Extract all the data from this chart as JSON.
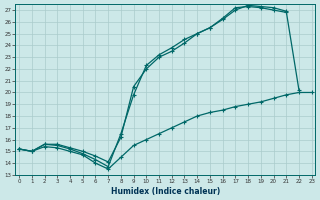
{
  "xlabel": "Humidex (Indice chaleur)",
  "bg_color": "#cce8e8",
  "line_color": "#006868",
  "grid_color": "#aacccc",
  "xlim": [
    -0.3,
    23.3
  ],
  "ylim": [
    13,
    27.5
  ],
  "xticks": [
    0,
    1,
    2,
    3,
    4,
    5,
    6,
    7,
    8,
    9,
    10,
    11,
    12,
    13,
    14,
    15,
    16,
    17,
    18,
    19,
    20,
    21,
    22,
    23
  ],
  "yticks": [
    13,
    14,
    15,
    16,
    17,
    18,
    19,
    20,
    21,
    22,
    23,
    24,
    25,
    26,
    27
  ],
  "line1_x": [
    0,
    1,
    2,
    3,
    4,
    5,
    6,
    7,
    8,
    9,
    10,
    11,
    12,
    13,
    14,
    15,
    16,
    17,
    18,
    19,
    20,
    21
  ],
  "line1_y": [
    15.2,
    15.0,
    15.6,
    15.5,
    15.2,
    14.8,
    14.3,
    13.7,
    16.5,
    19.8,
    22.3,
    23.2,
    23.8,
    24.5,
    25.0,
    25.5,
    26.3,
    27.2,
    27.3,
    27.2,
    27.0,
    26.8
  ],
  "line2_x": [
    0,
    1,
    2,
    3,
    4,
    5,
    6,
    7,
    8,
    9,
    10,
    11,
    12,
    13,
    14,
    15,
    16,
    17,
    18,
    19,
    20,
    21,
    22
  ],
  "line2_y": [
    15.2,
    15.0,
    15.6,
    15.6,
    15.3,
    15.0,
    14.6,
    14.1,
    16.2,
    20.5,
    22.0,
    23.0,
    23.5,
    24.2,
    25.0,
    25.5,
    26.2,
    27.0,
    27.4,
    27.3,
    27.2,
    26.9,
    20.2
  ],
  "line3_x": [
    0,
    1,
    2,
    3,
    4,
    5,
    6,
    7,
    8,
    9,
    10,
    11,
    12,
    13,
    14,
    15,
    16,
    17,
    18,
    19,
    20,
    21,
    22,
    23
  ],
  "line3_y": [
    15.2,
    15.0,
    15.4,
    15.3,
    15.0,
    14.7,
    14.0,
    13.5,
    14.5,
    15.5,
    16.0,
    16.5,
    17.0,
    17.5,
    18.0,
    18.3,
    18.5,
    18.8,
    19.0,
    19.2,
    19.5,
    19.8,
    20.0,
    20.0
  ]
}
